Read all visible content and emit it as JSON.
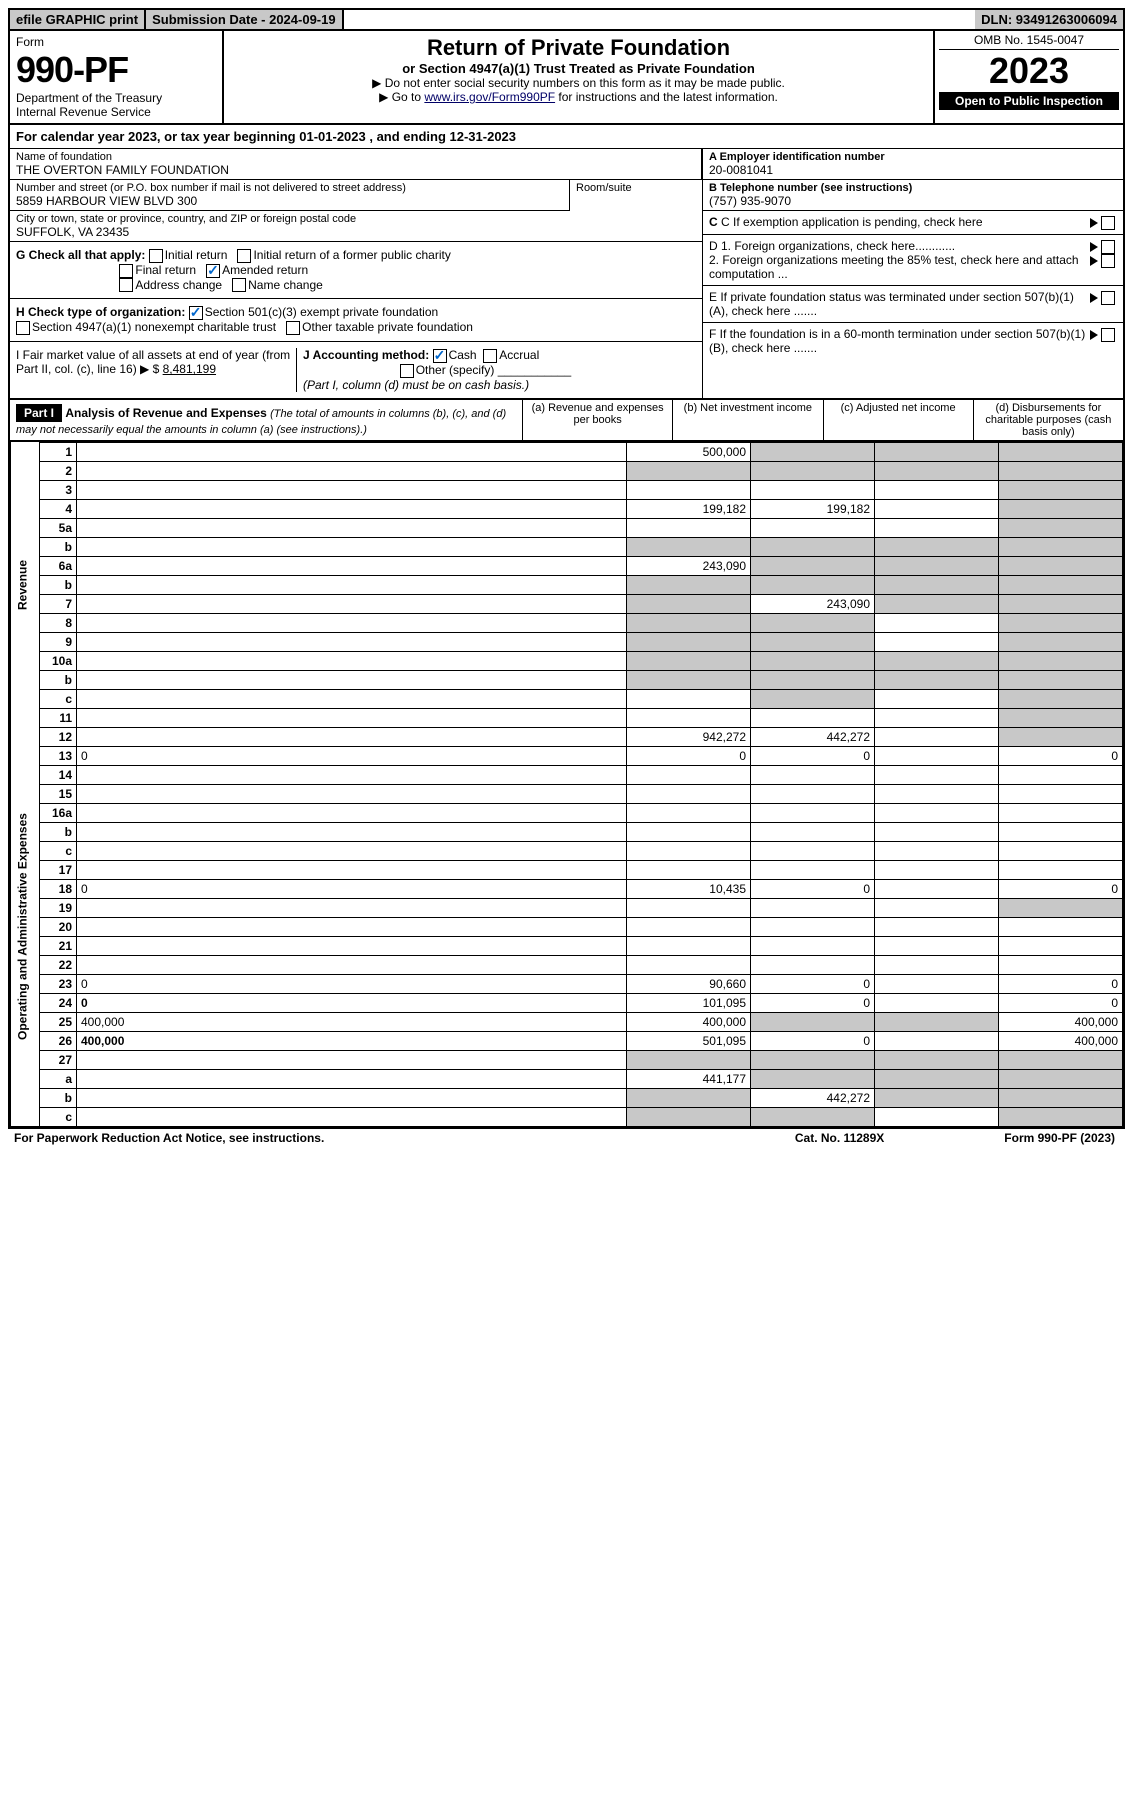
{
  "topbar": {
    "efile": "efile GRAPHIC print",
    "subdate_label": "Submission Date - 2024-09-19",
    "dln": "DLN: 93491263006094"
  },
  "header": {
    "form_label": "Form",
    "form_number": "990-PF",
    "dept1": "Department of the Treasury",
    "dept2": "Internal Revenue Service",
    "title": "Return of Private Foundation",
    "subtitle": "or Section 4947(a)(1) Trust Treated as Private Foundation",
    "instr1": "▶ Do not enter social security numbers on this form as it may be made public.",
    "instr2_pre": "▶ Go to ",
    "instr2_link": "www.irs.gov/Form990PF",
    "instr2_post": " for instructions and the latest information.",
    "omb": "OMB No. 1545-0047",
    "year": "2023",
    "open": "Open to Public Inspection"
  },
  "calendar": {
    "text_pre": "For calendar year 2023, or tax year beginning ",
    "begin": "01-01-2023",
    "text_mid": " , and ending ",
    "end": "12-31-2023"
  },
  "info": {
    "name_label": "Name of foundation",
    "name": "THE OVERTON FAMILY FOUNDATION",
    "addr_label": "Number and street (or P.O. box number if mail is not delivered to street address)",
    "addr": "5859 HARBOUR VIEW BLVD 300",
    "room_label": "Room/suite",
    "city_label": "City or town, state or province, country, and ZIP or foreign postal code",
    "city": "SUFFOLK, VA  23435",
    "a_label": "A Employer identification number",
    "a_val": "20-0081041",
    "b_label": "B Telephone number (see instructions)",
    "b_val": "(757) 935-9070",
    "c_label": "C If exemption application is pending, check here",
    "d1": "D 1. Foreign organizations, check here............",
    "d2": "2. Foreign organizations meeting the 85% test, check here and attach computation ...",
    "e": "E  If private foundation status was terminated under section 507(b)(1)(A), check here .......",
    "f": "F  If the foundation is in a 60-month termination under section 507(b)(1)(B), check here .......",
    "g_label": "G Check all that apply:",
    "g_initial": "Initial return",
    "g_initial_former": "Initial return of a former public charity",
    "g_final": "Final return",
    "g_amended": "Amended return",
    "g_address": "Address change",
    "g_name": "Name change",
    "h_label": "H Check type of organization:",
    "h_501c3": "Section 501(c)(3) exempt private foundation",
    "h_4947": "Section 4947(a)(1) nonexempt charitable trust",
    "h_other": "Other taxable private foundation",
    "i_label": "I Fair market value of all assets at end of year (from Part II, col. (c), line 16) ▶ $",
    "i_val": "8,481,199",
    "j_label": "J Accounting method:",
    "j_cash": "Cash",
    "j_accrual": "Accrual",
    "j_other": "Other (specify)",
    "j_note": "(Part I, column (d) must be on cash basis.)"
  },
  "part1": {
    "label": "Part I",
    "title": "Analysis of Revenue and Expenses",
    "title_note": " (The total of amounts in columns (b), (c), and (d) may not necessarily equal the amounts in column (a) (see instructions).)",
    "col_a": "(a)  Revenue and expenses per books",
    "col_b": "(b)  Net investment income",
    "col_c": "(c)  Adjusted net income",
    "col_d": "(d)  Disbursements for charitable purposes (cash basis only)"
  },
  "sidecat": {
    "revenue": "Revenue",
    "expenses": "Operating and Administrative Expenses"
  },
  "rows": [
    {
      "n": "1",
      "d": "",
      "a": "500,000",
      "b": "",
      "c": "",
      "shade": [
        "b",
        "c",
        "d"
      ]
    },
    {
      "n": "2",
      "d": "",
      "a": "",
      "b": "",
      "c": "",
      "shade": [
        "a",
        "b",
        "c",
        "d"
      ]
    },
    {
      "n": "3",
      "d": "",
      "a": "",
      "b": "",
      "c": "",
      "shade": [
        "d"
      ]
    },
    {
      "n": "4",
      "d": "",
      "a": "199,182",
      "b": "199,182",
      "c": "",
      "shade": [
        "d"
      ]
    },
    {
      "n": "5a",
      "d": "",
      "a": "",
      "b": "",
      "c": "",
      "shade": [
        "d"
      ]
    },
    {
      "n": "b",
      "d": "",
      "a": "",
      "b": "",
      "c": "",
      "shade": [
        "a",
        "b",
        "c",
        "d"
      ]
    },
    {
      "n": "6a",
      "d": "",
      "a": "243,090",
      "b": "",
      "c": "",
      "shade": [
        "b",
        "c",
        "d"
      ]
    },
    {
      "n": "b",
      "d": "",
      "a": "",
      "b": "",
      "c": "",
      "shade": [
        "a",
        "b",
        "c",
        "d"
      ]
    },
    {
      "n": "7",
      "d": "",
      "a": "",
      "b": "243,090",
      "c": "",
      "shade": [
        "a",
        "c",
        "d"
      ]
    },
    {
      "n": "8",
      "d": "",
      "a": "",
      "b": "",
      "c": "",
      "shade": [
        "a",
        "b",
        "d"
      ]
    },
    {
      "n": "9",
      "d": "",
      "a": "",
      "b": "",
      "c": "",
      "shade": [
        "a",
        "b",
        "d"
      ]
    },
    {
      "n": "10a",
      "d": "",
      "a": "",
      "b": "",
      "c": "",
      "shade": [
        "a",
        "b",
        "c",
        "d"
      ]
    },
    {
      "n": "b",
      "d": "",
      "a": "",
      "b": "",
      "c": "",
      "shade": [
        "a",
        "b",
        "c",
        "d"
      ]
    },
    {
      "n": "c",
      "d": "",
      "a": "",
      "b": "",
      "c": "",
      "shade": [
        "b",
        "d"
      ]
    },
    {
      "n": "11",
      "d": "",
      "a": "",
      "b": "",
      "c": "",
      "shade": [
        "d"
      ]
    },
    {
      "n": "12",
      "d": "",
      "a": "942,272",
      "b": "442,272",
      "c": "",
      "shade": [
        "d"
      ],
      "bold": true
    },
    {
      "n": "13",
      "d": "0",
      "a": "0",
      "b": "0",
      "c": ""
    },
    {
      "n": "14",
      "d": "",
      "a": "",
      "b": "",
      "c": ""
    },
    {
      "n": "15",
      "d": "",
      "a": "",
      "b": "",
      "c": ""
    },
    {
      "n": "16a",
      "d": "",
      "a": "",
      "b": "",
      "c": ""
    },
    {
      "n": "b",
      "d": "",
      "a": "",
      "b": "",
      "c": ""
    },
    {
      "n": "c",
      "d": "",
      "a": "",
      "b": "",
      "c": ""
    },
    {
      "n": "17",
      "d": "",
      "a": "",
      "b": "",
      "c": ""
    },
    {
      "n": "18",
      "d": "0",
      "a": "10,435",
      "b": "0",
      "c": ""
    },
    {
      "n": "19",
      "d": "",
      "a": "",
      "b": "",
      "c": "",
      "shade": [
        "d"
      ]
    },
    {
      "n": "20",
      "d": "",
      "a": "",
      "b": "",
      "c": ""
    },
    {
      "n": "21",
      "d": "",
      "a": "",
      "b": "",
      "c": ""
    },
    {
      "n": "22",
      "d": "",
      "a": "",
      "b": "",
      "c": ""
    },
    {
      "n": "23",
      "d": "0",
      "a": "90,660",
      "b": "0",
      "c": ""
    },
    {
      "n": "24",
      "d": "0",
      "a": "101,095",
      "b": "0",
      "c": "",
      "bold": true
    },
    {
      "n": "25",
      "d": "400,000",
      "a": "400,000",
      "b": "",
      "c": "",
      "shade": [
        "b",
        "c"
      ]
    },
    {
      "n": "26",
      "d": "400,000",
      "a": "501,095",
      "b": "0",
      "c": "",
      "bold": true
    },
    {
      "n": "27",
      "d": "",
      "a": "",
      "b": "",
      "c": "",
      "shade": [
        "a",
        "b",
        "c",
        "d"
      ]
    },
    {
      "n": "a",
      "d": "",
      "a": "441,177",
      "b": "",
      "c": "",
      "shade": [
        "b",
        "c",
        "d"
      ],
      "bold": true
    },
    {
      "n": "b",
      "d": "",
      "a": "",
      "b": "442,272",
      "c": "",
      "shade": [
        "a",
        "c",
        "d"
      ],
      "bold": true
    },
    {
      "n": "c",
      "d": "",
      "a": "",
      "b": "",
      "c": "",
      "shade": [
        "a",
        "b",
        "d"
      ],
      "bold": true
    }
  ],
  "footer": {
    "left": "For Paperwork Reduction Act Notice, see instructions.",
    "mid": "Cat. No. 11289X",
    "right": "Form 990-PF (2023)"
  }
}
